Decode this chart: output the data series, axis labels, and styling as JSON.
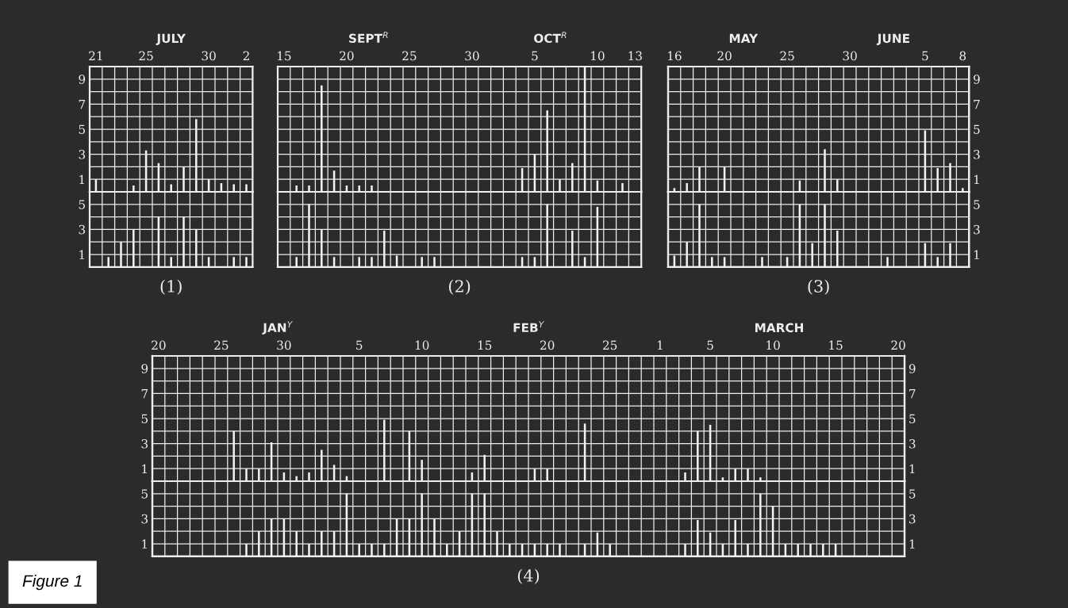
{
  "chart_data": [
    {
      "type": "bar",
      "annotations": [
        "JULY"
      ],
      "categories": [
        "21",
        null,
        null,
        null,
        "25",
        null,
        null,
        null,
        null,
        "30",
        null,
        null,
        "2"
      ],
      "series": [
        {
          "color": "#f2f2f2",
          "values": [
            1,
            null,
            null,
            0.5,
            3.3,
            2.3,
            0.6,
            2,
            5.8,
            1,
            0.7,
            0.6,
            0.6
          ]
        }
      ],
      "ylim": [
        0,
        10
      ],
      "yticks": [
        1,
        {
          "value": 2,
          "label": null
        },
        3,
        {
          "value": 4,
          "label": null
        },
        5,
        {
          "value": 6,
          "label": null
        },
        7,
        {
          "value": 8,
          "label": null
        },
        9
      ],
      "grid": true
    },
    {
      "type": "bar",
      "xlabel": "(1)",
      "categories": [
        "21",
        null,
        null,
        null,
        "25",
        null,
        null,
        null,
        null,
        "30",
        null,
        null,
        "2"
      ],
      "series": [
        {
          "color": "#f2f2f2",
          "values": [
            null,
            0.8,
            2,
            3,
            null,
            4,
            0.8,
            4,
            3,
            0.8,
            null,
            0.8,
            0.8
          ]
        }
      ],
      "ylim": [
        0,
        6
      ],
      "yticks": [
        1,
        {
          "value": 2,
          "label": null
        },
        3,
        {
          "value": 4,
          "label": null
        },
        5
      ],
      "grid": true,
      "tick_labels": "y"
    },
    {
      "type": "bar",
      "annotations": [
        "SEPT$^{R}$",
        "OCT$^{R}$"
      ],
      "categories": [
        "15",
        null,
        null,
        null,
        null,
        "20",
        null,
        null,
        null,
        null,
        "25",
        null,
        null,
        null,
        null,
        "30",
        null,
        null,
        null,
        null,
        "5",
        null,
        null,
        null,
        null,
        "10",
        null,
        null,
        "13"
      ],
      "series": [
        {
          "color": "#f2f2f2",
          "values": [
            null,
            0.5,
            0.5,
            8.5,
            1.7,
            0.5,
            0.5,
            0.5,
            null,
            null,
            null,
            null,
            null,
            null,
            null,
            null,
            null,
            null,
            null,
            1.9,
            3,
            6.5,
            1,
            2.3,
            10,
            0.9,
            null,
            0.7,
            null
          ]
        }
      ],
      "ylim": [
        0,
        10
      ],
      "yticks": [
        {
          "value": 1,
          "label": null
        },
        {
          "value": 2,
          "label": null
        },
        {
          "value": 3,
          "label": null
        },
        {
          "value": 4,
          "label": null
        },
        {
          "value": 5,
          "label": null
        },
        {
          "value": 6,
          "label": null
        },
        {
          "value": 7,
          "label": null
        },
        {
          "value": 8,
          "label": null
        },
        {
          "value": 9,
          "label": null
        }
      ],
      "grid": true,
      "tick_labels": "x"
    },
    {
      "type": "bar",
      "xlabel": "(2)",
      "categories": [
        "15",
        null,
        null,
        null,
        null,
        "20",
        null,
        null,
        null,
        null,
        "25",
        null,
        null,
        null,
        null,
        "30",
        null,
        null,
        null,
        null,
        "5",
        null,
        null,
        null,
        null,
        "10",
        null,
        null,
        "13"
      ],
      "series": [
        {
          "color": "#f2f2f2",
          "values": [
            null,
            0.8,
            5,
            3,
            0.8,
            null,
            0.8,
            0.8,
            2.9,
            0.9,
            null,
            0.8,
            0.8,
            null,
            null,
            null,
            null,
            null,
            null,
            0.8,
            0.8,
            5,
            null,
            2.9,
            0.8,
            4.8,
            null,
            null,
            null
          ]
        }
      ],
      "ylim": [
        0,
        6
      ],
      "yticks": [
        {
          "value": 1,
          "label": null
        },
        {
          "value": 2,
          "label": null
        },
        {
          "value": 3,
          "label": null
        },
        {
          "value": 4,
          "label": null
        },
        {
          "value": 5,
          "label": null
        }
      ],
      "grid": true,
      "tick_labels": false
    },
    {
      "type": "bar",
      "annotations": [
        "MAY",
        "JUNE"
      ],
      "categories": [
        "16",
        null,
        null,
        null,
        "20",
        null,
        null,
        null,
        null,
        "25",
        null,
        null,
        null,
        null,
        "30",
        null,
        null,
        null,
        null,
        null,
        "5",
        null,
        null,
        "8"
      ],
      "series": [
        {
          "color": "#f2f2f2",
          "axis": "y2",
          "values": [
            0.3,
            0.7,
            2,
            null,
            2,
            null,
            null,
            null,
            null,
            null,
            0.9,
            null,
            3.4,
            1,
            null,
            null,
            null,
            null,
            null,
            null,
            4.9,
            1.9,
            2.3,
            0.3
          ]
        }
      ],
      "y2lim": [
        0,
        10
      ],
      "y2ticks": [
        1,
        {
          "value": 2,
          "label": null
        },
        3,
        {
          "value": 4,
          "label": null
        },
        5,
        {
          "value": 6,
          "label": null
        },
        7,
        {
          "value": 8,
          "label": null
        },
        9
      ],
      "grid": true
    },
    {
      "type": "bar",
      "xlabel": "(3)",
      "categories": [
        "16",
        null,
        null,
        null,
        "20",
        null,
        null,
        null,
        null,
        "25",
        null,
        null,
        null,
        null,
        "30",
        null,
        null,
        null,
        null,
        null,
        "5",
        null,
        null,
        "8"
      ],
      "series": [
        {
          "color": "#f2f2f2",
          "axis": "y2",
          "values": [
            0.9,
            2,
            5,
            0.8,
            0.8,
            null,
            null,
            0.8,
            null,
            0.8,
            5,
            1.9,
            5,
            2.9,
            null,
            null,
            null,
            0.8,
            null,
            null,
            1.9,
            0.8,
            1.9,
            null
          ]
        }
      ],
      "y2lim": [
        0,
        6
      ],
      "y2ticks": [
        1,
        {
          "value": 2,
          "label": null
        },
        3,
        {
          "value": 4,
          "label": null
        },
        5
      ],
      "grid": true,
      "tick_labels": "y"
    },
    {
      "type": "bar",
      "annotations": [
        "JAN$^{Y}$",
        "FEB$^{Y}$",
        "MARCH"
      ],
      "categories": [
        "20",
        null,
        null,
        null,
        null,
        "25",
        null,
        null,
        null,
        null,
        "30",
        null,
        null,
        null,
        null,
        null,
        "5",
        null,
        null,
        null,
        null,
        "10",
        null,
        null,
        null,
        null,
        "15",
        null,
        null,
        null,
        null,
        "20",
        null,
        null,
        null,
        null,
        "25",
        null,
        null,
        null,
        "1",
        null,
        null,
        null,
        "5",
        null,
        null,
        null,
        null,
        "10",
        null,
        null,
        null,
        null,
        "15",
        null,
        null,
        null,
        null,
        "20"
      ],
      "series": [
        {
          "color": "#f2f2f2",
          "values": [
            null,
            null,
            null,
            null,
            null,
            null,
            4,
            1,
            1,
            3.1,
            0.7,
            0.4,
            0.7,
            2.5,
            1.3,
            0.4,
            null,
            null,
            4.9,
            null,
            4,
            1.7,
            null,
            null,
            null,
            0.7,
            2.1,
            null,
            null,
            null,
            1,
            1,
            null,
            null,
            4.6,
            null,
            null,
            null,
            null,
            null,
            null,
            null,
            0.7,
            4,
            4.5,
            0.3,
            1,
            1,
            0.3,
            null,
            null,
            null,
            null,
            null,
            null,
            null,
            null,
            null,
            null,
            null
          ]
        }
      ],
      "ylim": [
        0,
        10
      ],
      "yticks": [
        1,
        {
          "value": 2,
          "label": null
        },
        3,
        {
          "value": 4,
          "label": null
        },
        5,
        {
          "value": 6,
          "label": null
        },
        7,
        {
          "value": 8,
          "label": null
        },
        9
      ],
      "y2lim": [
        0,
        10
      ],
      "y2ticks": [
        1,
        {
          "value": 2,
          "label": null
        },
        3,
        {
          "value": 4,
          "label": null
        },
        5,
        {
          "value": 6,
          "label": null
        },
        7,
        {
          "value": 8,
          "label": null
        },
        9
      ],
      "grid": true
    },
    {
      "type": "bar",
      "xlabel": "(4)",
      "annotations": [
        "Figure 1"
      ],
      "categories": [
        "20",
        null,
        null,
        null,
        null,
        "25",
        null,
        null,
        null,
        null,
        "30",
        null,
        null,
        null,
        null,
        null,
        "5",
        null,
        null,
        null,
        null,
        "10",
        null,
        null,
        null,
        null,
        "15",
        null,
        null,
        null,
        null,
        "20",
        null,
        null,
        null,
        null,
        "25",
        null,
        null,
        null,
        "1",
        null,
        null,
        null,
        "5",
        null,
        null,
        null,
        null,
        "10",
        null,
        null,
        null,
        null,
        "15",
        null,
        null,
        null,
        null,
        "20"
      ],
      "series": [
        {
          "color": "#f2f2f2",
          "values": [
            null,
            null,
            null,
            null,
            null,
            null,
            null,
            1,
            2,
            3,
            3,
            2,
            1,
            2,
            2,
            5,
            1,
            1,
            1,
            3,
            3,
            5,
            3,
            1,
            2,
            5,
            5,
            2,
            1,
            1,
            1,
            1,
            1,
            null,
            1,
            1.9,
            1,
            null,
            null,
            null,
            null,
            null,
            1,
            2.9,
            1.9,
            1,
            2.9,
            1,
            5,
            4,
            1,
            1,
            1,
            1,
            1,
            null,
            null,
            null,
            null,
            null
          ]
        }
      ],
      "ylim": [
        0,
        6
      ],
      "yticks": [
        1,
        {
          "value": 2,
          "label": null
        },
        3,
        {
          "value": 4,
          "label": null
        },
        5
      ],
      "y2lim": [
        0,
        6
      ],
      "y2ticks": [
        1,
        {
          "value": 2,
          "label": null
        },
        3,
        {
          "value": 4,
          "label": null
        },
        5
      ],
      "grid": true,
      "tick_labels": "y"
    }
  ]
}
